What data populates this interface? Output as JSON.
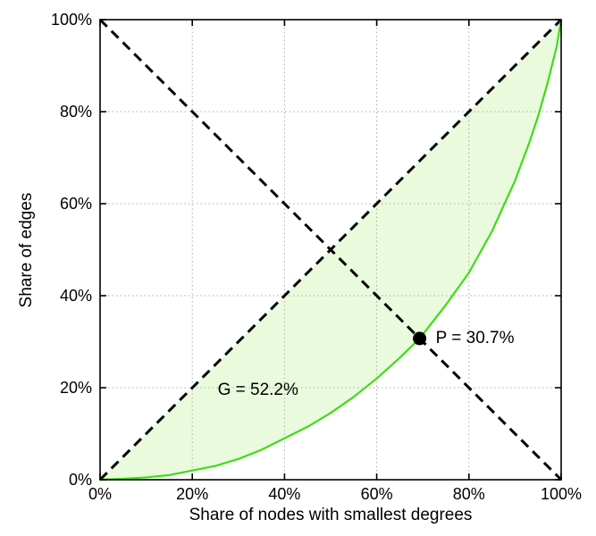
{
  "chart_data": {
    "type": "line",
    "title": "",
    "xlabel": "Share of nodes with smallest degrees",
    "ylabel": "Share of edges",
    "xlim": [
      0,
      100
    ],
    "ylim": [
      0,
      100
    ],
    "grid": true,
    "legend": "none",
    "x_ticks": [
      0,
      20,
      40,
      60,
      80,
      100
    ],
    "x_tick_labels": [
      "0%",
      "20%",
      "40%",
      "60%",
      "80%",
      "100%"
    ],
    "y_ticks": [
      0,
      20,
      40,
      60,
      80,
      100
    ],
    "y_tick_labels": [
      "0%",
      "20%",
      "40%",
      "60%",
      "80%",
      "100%"
    ],
    "colors": {
      "curve": "#3fdd15",
      "area_fill": "#e9fadd",
      "dashed": "#000000",
      "grid": "#ababab",
      "dot": "#000000",
      "text": "#000000",
      "background": "#ffffff"
    },
    "lorenz_curve": {
      "name": "lorenz-curve",
      "x": [
        0,
        5,
        10,
        15,
        20,
        25,
        30,
        35,
        40,
        45,
        50,
        55,
        60,
        65,
        69.3,
        75,
        80,
        85,
        90,
        93,
        95,
        97,
        98,
        99,
        100
      ],
      "y": [
        0,
        0.2,
        0.5,
        1.0,
        2.0,
        3.0,
        4.5,
        6.5,
        9.0,
        11.5,
        14.5,
        18.0,
        22.0,
        26.5,
        30.7,
        38.0,
        45.0,
        54.0,
        65.0,
        73.0,
        79.0,
        86.0,
        90.0,
        94.0,
        100
      ]
    },
    "equality_line": {
      "name": "equality-line",
      "style": "dashed",
      "x": [
        0,
        100
      ],
      "y": [
        0,
        100
      ]
    },
    "anti_diagonal_line": {
      "name": "anti-diagonal-line",
      "style": "dashed",
      "x": [
        0,
        100
      ],
      "y": [
        100,
        0
      ]
    },
    "gini": {
      "label": "G = 52.2%",
      "value_pct": 52.2,
      "label_x": 25.5,
      "label_y": 19.5
    },
    "intersection_point": {
      "label": "P = 30.7%",
      "x": 69.3,
      "y": 30.7,
      "label_x": 72.8,
      "label_y": 30.7
    }
  }
}
